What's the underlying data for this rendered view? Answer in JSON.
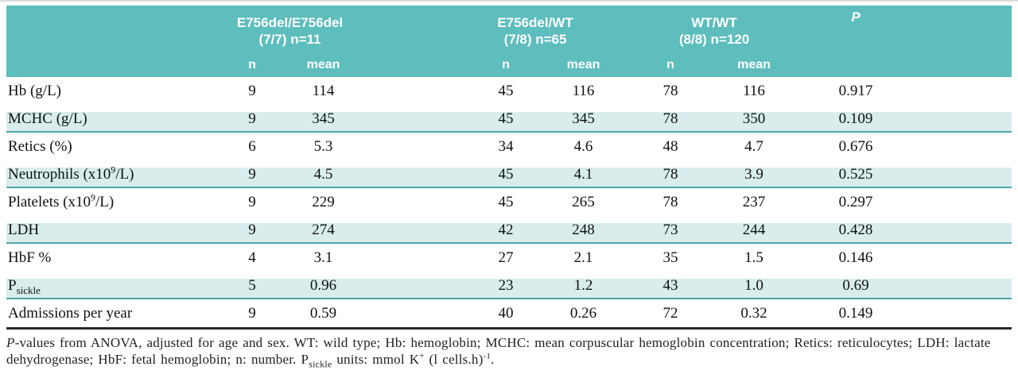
{
  "table": {
    "groups": [
      {
        "line1": "E756del/E756del",
        "line2": "(7/7) n=11"
      },
      {
        "line1": "E756del/WT",
        "line2": "(7/8) n=65"
      },
      {
        "line1": "WT/WT",
        "line2": "(8/8) n=120"
      }
    ],
    "p_header": "P",
    "sub_n": "n",
    "sub_mean": "mean",
    "rows": [
      {
        "label": "Hb (g/L)",
        "sup": "",
        "sub": "",
        "post": "",
        "n1": "9",
        "mean1": "114",
        "n2": "45",
        "mean2": "116",
        "n3": "78",
        "mean3": "116",
        "p": "0.917",
        "shaded": false
      },
      {
        "label": "MCHC (g/L)",
        "sup": "",
        "sub": "",
        "post": "",
        "n1": "9",
        "mean1": "345",
        "n2": "45",
        "mean2": "345",
        "n3": "78",
        "mean3": "350",
        "p": "0.109",
        "shaded": true
      },
      {
        "label": "Retics (%)",
        "sup": "",
        "sub": "",
        "post": "",
        "n1": "6",
        "mean1": "5.3",
        "n2": "34",
        "mean2": "4.6",
        "n3": "48",
        "mean3": "4.7",
        "p": "0.676",
        "shaded": false
      },
      {
        "label": "Neutrophils (x10",
        "sup": "9",
        "sub": "",
        "post": "/L)",
        "n1": "9",
        "mean1": "4.5",
        "n2": "45",
        "mean2": "4.1",
        "n3": "78",
        "mean3": "3.9",
        "p": "0.525",
        "shaded": true
      },
      {
        "label": "Platelets (x10",
        "sup": "9",
        "sub": "",
        "post": "/L)",
        "n1": "9",
        "mean1": "229",
        "n2": "45",
        "mean2": "265",
        "n3": "78",
        "mean3": "237",
        "p": "0.297",
        "shaded": false
      },
      {
        "label": "LDH",
        "sup": "",
        "sub": "",
        "post": "",
        "n1": "9",
        "mean1": "274",
        "n2": "42",
        "mean2": "248",
        "n3": "73",
        "mean3": "244",
        "p": "0.428",
        "shaded": true
      },
      {
        "label": "HbF %",
        "sup": "",
        "sub": "",
        "post": "",
        "n1": "4",
        "mean1": "3.1",
        "n2": "27",
        "mean2": "2.1",
        "n3": "35",
        "mean3": "1.5",
        "p": "0.146",
        "shaded": false
      },
      {
        "label": "P",
        "sup": "",
        "sub": "sickle",
        "post": "",
        "n1": "5",
        "mean1": "0.96",
        "n2": "23",
        "mean2": "1.2",
        "n3": "43",
        "mean3": "1.0",
        "p": "0.69",
        "shaded": true
      },
      {
        "label": "Admissions per year",
        "sup": "",
        "sub": "",
        "post": "",
        "n1": "9",
        "mean1": "0.59",
        "n2": "40",
        "mean2": "0.26",
        "n3": "72",
        "mean3": "0.32",
        "p": "0.149",
        "shaded": false
      }
    ]
  },
  "footnote": {
    "line1": {
      "p": "P",
      "rest": "-values from ANOVA, adjusted for age and sex. WT: wild type; Hb: hemoglobin; MCHC: mean corpuscular hemoglobin concentration; Retics: reticulocytes; LDH: lactate"
    },
    "line2": {
      "pre": "dehydrogenase; HbF: fetal hemoglobin; n: number. P",
      "sub": "sickle",
      "mid": " units: mmol K",
      "sup1": "+",
      "mid2": " (l cells.h)",
      "sup2": "-1",
      "end": "."
    }
  },
  "colors": {
    "header_teal": "#5ebdbd",
    "row_shade": "#d8edec",
    "shade_rule": "#4ba7a9",
    "bottom_rule": "#2a2a2a"
  }
}
